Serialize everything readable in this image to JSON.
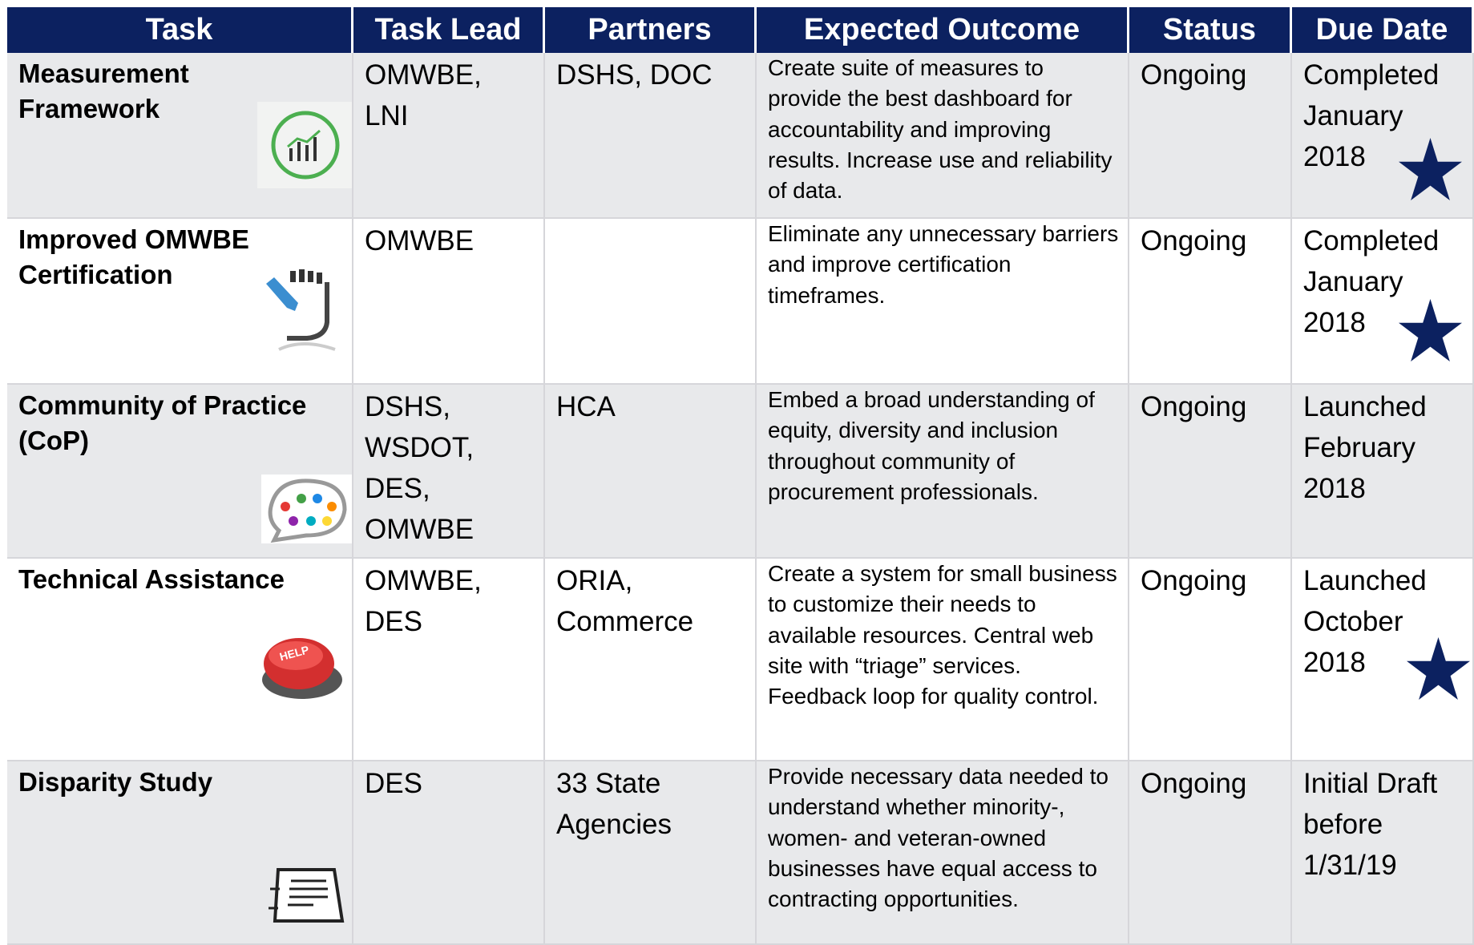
{
  "table": {
    "header": [
      "Task",
      "Task Lead",
      "Partners",
      "Expected Outcome",
      "Status",
      "Due Date"
    ],
    "rows": [
      [
        "Measurement Framework",
        "OMWBE, LNI",
        "DSHS, DOC",
        "Create suite of measures to provide the best dashboard for accountability and improving results. Increase use and reliability of data.",
        "Ongoing",
        "Completed January 2018"
      ],
      [
        "Improved OMWBE Certification",
        "OMWBE",
        null,
        "Eliminate any unnecessary barriers and improve certification timeframes.",
        "Ongoing",
        "Completed January 2018"
      ],
      [
        "Community of Practice (CoP)",
        "DSHS, WSDOT, DES, OMWBE",
        "HCA",
        "Embed a broad understanding of equity, diversity and inclusion throughout community of procurement professionals.",
        "Ongoing",
        "Launched February 2018"
      ],
      [
        "Technical Assistance",
        "OMWBE, DES",
        "ORIA, Commerce",
        "Create a system for small business to customize their needs to available resources. Central web site with “triage” services. Feedback loop for quality control.",
        "Ongoing",
        "Launched October 2018"
      ],
      [
        "Disparity Study",
        "DES",
        "33 State Agencies",
        "Provide necessary data needed to understand whether minority-, women- and veteran-owned businesses have equal access to contracting opportunities.",
        "Ongoing",
        "Initial Draft before 1/31/19"
      ]
    ]
  }
}
